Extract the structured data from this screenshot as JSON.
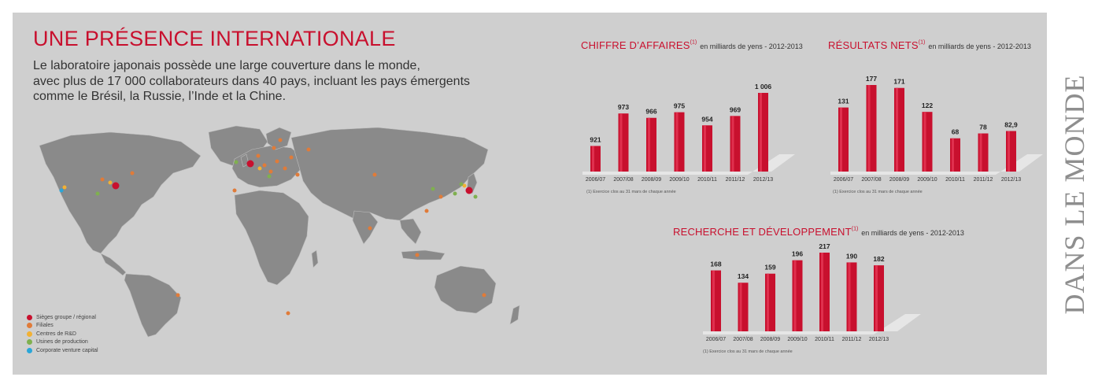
{
  "title": "UNE PRÉSENCE INTERNATIONALE",
  "intro": [
    "Le laboratoire japonais possède une large couverture dans le monde,",
    "avec plus de 17 000 collaborateurs dans 40 pays, incluant les pays émergents",
    "comme le Brésil, la Russie, l’Inde et la Chine."
  ],
  "side_title": "DANS LE MONDE",
  "legend": [
    {
      "label": "Sièges groupe / régional",
      "color": "#c8102e"
    },
    {
      "label": "Filiales",
      "color": "#e07b39"
    },
    {
      "label": "Centres de R&D",
      "color": "#f2b134"
    },
    {
      "label": "Usines de production",
      "color": "#7fb04f"
    },
    {
      "label": "Corporate venture capital",
      "color": "#2aa6d8"
    }
  ],
  "colors": {
    "bar": "#c8102e",
    "bar_light": "#e0304e",
    "map_land": "#8a8a8a",
    "panel": "#cfcfcf"
  },
  "chart_data": [
    {
      "type": "bar",
      "title": "CHIFFRE D’AFFAIRES",
      "title_sup": "(1)",
      "unit": "en milliards de yens - 2012-2013",
      "categories": [
        "2006/07",
        "2007/08",
        "2008/09",
        "2009/10",
        "2010/11",
        "2011/12",
        "2012/13"
      ],
      "values": [
        921,
        973,
        966,
        975,
        954,
        969,
        1006
      ],
      "labels": [
        "921",
        "973",
        "966",
        "975",
        "954",
        "969",
        "1 006"
      ],
      "footnote": "(1) Exercice clos au 31 mars de chaque année"
    },
    {
      "type": "bar",
      "title": "RÉSULTATS NETS",
      "title_sup": "(1)",
      "unit": "en milliards de yens - 2012-2013",
      "categories": [
        "2006/07",
        "2007/08",
        "2008/09",
        "2009/10",
        "2010/11",
        "2011/12",
        "2012/13"
      ],
      "values": [
        131,
        177,
        171,
        122,
        68,
        78,
        82.9
      ],
      "labels": [
        "131",
        "177",
        "171",
        "122",
        "68",
        "78",
        "82,9"
      ],
      "footnote": "(1) Exercice clos au 31 mars de chaque année"
    },
    {
      "type": "bar",
      "title": "RECHERCHE ET DÉVELOPPEMENT",
      "title_sup": "(1)",
      "unit": "en milliards de yens - 2012-2013",
      "categories": [
        "2006/07",
        "2007/08",
        "2008/09",
        "2009/10",
        "2010/11",
        "2011/12",
        "2012/13"
      ],
      "values": [
        168,
        134,
        159,
        196,
        217,
        190,
        182
      ],
      "labels": [
        "168",
        "134",
        "159",
        "196",
        "217",
        "190",
        "182"
      ],
      "footnote": "(1) Exercice clos au 31 mars de chaque année"
    }
  ]
}
